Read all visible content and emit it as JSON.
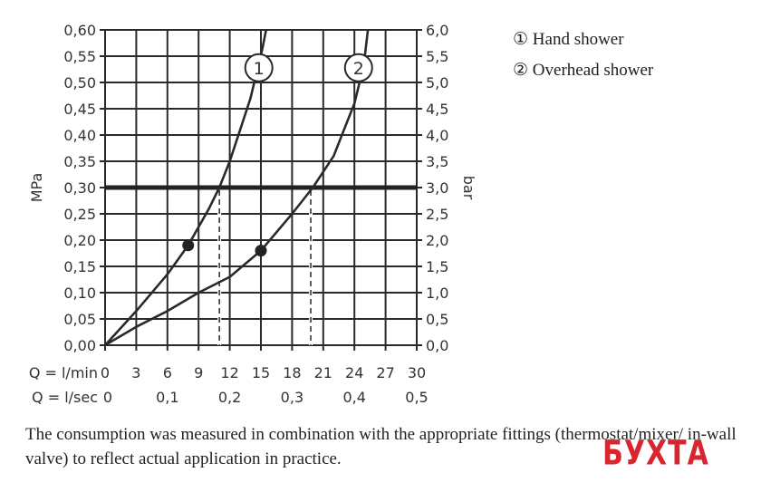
{
  "chart_data": {
    "type": "line",
    "ylabel_left": "MPa",
    "ylabel_right": "bar",
    "xlabel_primary": "Q = l/min",
    "xlabel_secondary": "Q = l/sec",
    "xlim": [
      0,
      30
    ],
    "ylim": [
      0,
      0.6
    ],
    "grid": true,
    "x_ticks": [
      "0",
      "3",
      "6",
      "9",
      "12",
      "15",
      "18",
      "21",
      "24",
      "27",
      "30"
    ],
    "x_tick_values": [
      0,
      3,
      6,
      9,
      12,
      15,
      18,
      21,
      24,
      27,
      30
    ],
    "x2_ticks": [
      "0",
      "0,1",
      "0,2",
      "0,3",
      "0,4",
      "0,5"
    ],
    "x2_tick_values": [
      0,
      6,
      12,
      18,
      24,
      30
    ],
    "y_ticks_left": [
      "0,00",
      "0,05",
      "0,10",
      "0,15",
      "0,20",
      "0,25",
      "0,30",
      "0,35",
      "0,40",
      "0,45",
      "0,50",
      "0,55",
      "0,60"
    ],
    "y_ticks_right": [
      "0,0",
      "0,5",
      "1,0",
      "1,5",
      "2,0",
      "2,5",
      "3,0",
      "3,5",
      "4,0",
      "4,5",
      "5,0",
      "5,5",
      "6,0"
    ],
    "y_tick_values": [
      0,
      0.05,
      0.1,
      0.15,
      0.2,
      0.25,
      0.3,
      0.35,
      0.4,
      0.45,
      0.5,
      0.55,
      0.6
    ],
    "reference_line_y": 0.3,
    "series": [
      {
        "name": "1",
        "x": [
          0,
          3,
          6,
          8,
          10,
          11,
          12,
          13,
          14,
          14.6,
          15.1,
          15.5
        ],
        "y": [
          0,
          0.065,
          0.135,
          0.19,
          0.26,
          0.3,
          0.35,
          0.41,
          0.47,
          0.52,
          0.56,
          0.6
        ],
        "marker": {
          "x": 8,
          "y": 0.19
        },
        "intersect_x": 11
      },
      {
        "name": "2",
        "x": [
          0,
          3,
          6,
          9,
          12,
          15,
          18,
          20,
          22,
          23,
          24,
          24.5,
          25,
          25.3
        ],
        "y": [
          0,
          0.035,
          0.065,
          0.1,
          0.13,
          0.18,
          0.25,
          0.3,
          0.36,
          0.41,
          0.46,
          0.5,
          0.55,
          0.6
        ],
        "marker": {
          "x": 15,
          "y": 0.18
        },
        "intersect_x": 19.8
      }
    ],
    "series_labels": [
      {
        "text": "1",
        "x": 14.8,
        "y": 0.528
      },
      {
        "text": "2",
        "x": 24.4,
        "y": 0.528
      }
    ],
    "legend": {
      "placement": "top-right",
      "entries": [
        "① Hand shower",
        "② Overhead shower"
      ]
    }
  },
  "caption": "The consumption was measured in combination with the appropriate fittings (thermostat/mixer/ in-wall valve) to reflect actual application in practice.",
  "watermark": "БУХТА",
  "colors": {
    "line": "#2a2a2a",
    "watermark": "#d9262e"
  }
}
